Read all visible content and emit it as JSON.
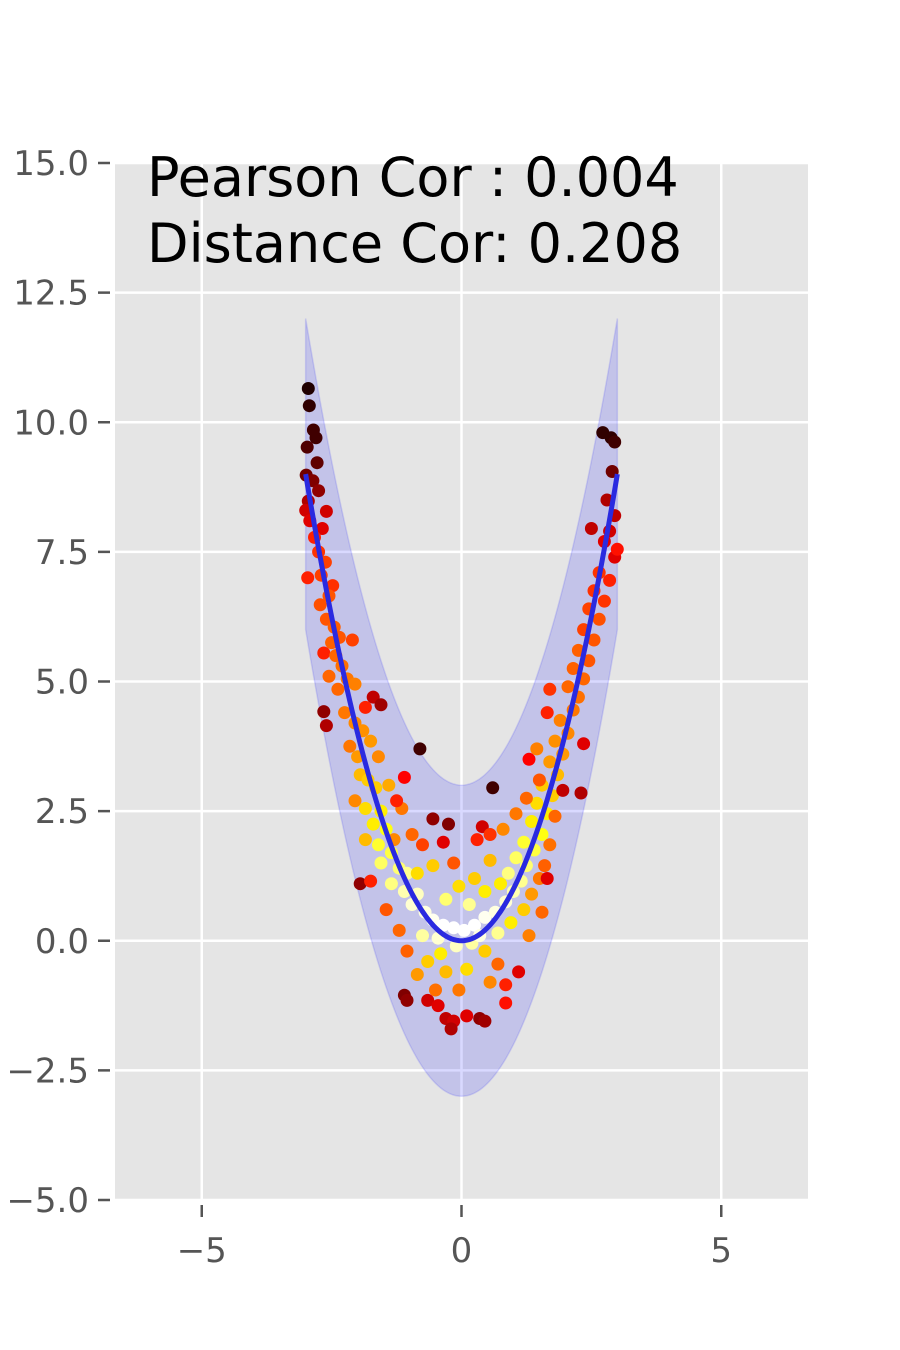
{
  "chart_data": {
    "type": "scatter",
    "title": "",
    "xlabel": "",
    "ylabel": "",
    "xlim": [
      -6.67,
      6.67
    ],
    "ylim": [
      -5,
      15
    ],
    "xticks": [
      -5,
      0,
      5
    ],
    "xtick_labels": [
      "−5",
      "0",
      "5"
    ],
    "yticks": [
      -5,
      -2.5,
      0,
      2.5,
      5,
      7.5,
      10,
      12.5,
      15
    ],
    "ytick_labels": [
      "−5.0",
      "−2.5",
      "0.0",
      "2.5",
      "5.0",
      "7.5",
      "10.0",
      "12.5",
      "15.0"
    ],
    "grid": true,
    "annotation_lines": [
      "Pearson Cor : 0.004",
      "Distance Cor: 0.208"
    ],
    "band": {
      "curve": "y = x^2",
      "x_range": [
        -3,
        3
      ],
      "upper_offset": 3,
      "lower_offset": -3,
      "color": "#0000ff",
      "opacity": 0.15
    },
    "fit_line": {
      "curve": "y = x^2",
      "x_range": [
        -3,
        3
      ],
      "color": "#2a2ae0"
    },
    "points_color_scale": "hot (density)",
    "points": [
      [
        -2.95,
        10.65,
        "#200000"
      ],
      [
        -2.93,
        10.32,
        "#300000"
      ],
      [
        -2.85,
        9.85,
        "#400000"
      ],
      [
        -2.8,
        9.7,
        "#400000"
      ],
      [
        -2.97,
        9.52,
        "#500000"
      ],
      [
        -2.78,
        9.22,
        "#600000"
      ],
      [
        -2.99,
        8.98,
        "#700000"
      ],
      [
        -2.86,
        8.87,
        "#800000"
      ],
      [
        -2.75,
        8.68,
        "#900000"
      ],
      [
        -2.95,
        8.48,
        "#b00000"
      ],
      [
        -3.0,
        8.3,
        "#d00000"
      ],
      [
        -2.92,
        8.1,
        "#e00000"
      ],
      [
        -2.6,
        8.28,
        "#d00000"
      ],
      [
        -2.68,
        7.95,
        "#e00000"
      ],
      [
        -2.83,
        7.78,
        "#ff2000"
      ],
      [
        -2.75,
        7.5,
        "#ff3300"
      ],
      [
        -2.62,
        7.3,
        "#ff4000"
      ],
      [
        -2.96,
        7.0,
        "#ff2000"
      ],
      [
        -2.7,
        7.05,
        "#ff4000"
      ],
      [
        -2.48,
        6.85,
        "#ff3000"
      ],
      [
        -2.55,
        6.65,
        "#ff5500"
      ],
      [
        -2.72,
        6.48,
        "#ff5000"
      ],
      [
        -2.6,
        6.2,
        "#ff5500"
      ],
      [
        -2.45,
        6.05,
        "#ff6000"
      ],
      [
        -2.35,
        5.85,
        "#ff5500"
      ],
      [
        -2.5,
        5.75,
        "#ff6000"
      ],
      [
        -2.1,
        5.8,
        "#ff4000"
      ],
      [
        -2.65,
        5.55,
        "#ff2000"
      ],
      [
        -2.42,
        5.5,
        "#ff6600"
      ],
      [
        -2.3,
        5.3,
        "#ff7000"
      ],
      [
        -2.55,
        5.1,
        "#ff6600"
      ],
      [
        -2.2,
        5.05,
        "#ff7700"
      ],
      [
        -2.38,
        4.85,
        "#ff6600"
      ],
      [
        -2.05,
        4.95,
        "#ff8000"
      ],
      [
        -1.7,
        4.7,
        "#c00000"
      ],
      [
        -1.55,
        4.55,
        "#a00000"
      ],
      [
        -1.85,
        4.5,
        "#ff2000"
      ],
      [
        -2.25,
        4.4,
        "#ff7700"
      ],
      [
        -2.65,
        4.42,
        "#900000"
      ],
      [
        -2.6,
        4.15,
        "#b00000"
      ],
      [
        -2.05,
        4.2,
        "#ff8800"
      ],
      [
        -1.9,
        4.05,
        "#ff9000"
      ],
      [
        -2.15,
        3.75,
        "#ff7700"
      ],
      [
        -1.75,
        3.85,
        "#ff9900"
      ],
      [
        -2.0,
        3.55,
        "#ff9900"
      ],
      [
        -1.95,
        3.2,
        "#ffbb00"
      ],
      [
        -1.8,
        3.1,
        "#ffcc00"
      ],
      [
        -1.65,
        2.95,
        "#ffcc00"
      ],
      [
        -2.05,
        2.7,
        "#ff8800"
      ],
      [
        -1.85,
        2.55,
        "#ffdd00"
      ],
      [
        -1.55,
        2.5,
        "#ffee00"
      ],
      [
        -1.7,
        2.25,
        "#ffee00"
      ],
      [
        -1.45,
        2.15,
        "#ffff10"
      ],
      [
        -1.85,
        1.95,
        "#ffbb00"
      ],
      [
        -1.6,
        1.85,
        "#ffff30"
      ],
      [
        -1.35,
        1.7,
        "#ffff40"
      ],
      [
        -1.55,
        1.5,
        "#ffff60"
      ],
      [
        -1.2,
        1.4,
        "#ffff70"
      ],
      [
        -1.05,
        1.3,
        "#ffff90"
      ],
      [
        -1.35,
        1.1,
        "#ffff80"
      ],
      [
        -1.1,
        0.95,
        "#ffffb0"
      ],
      [
        -0.85,
        0.9,
        "#ffffc0"
      ],
      [
        -0.95,
        0.7,
        "#ffffd0"
      ],
      [
        -0.7,
        0.55,
        "#ffffe0"
      ],
      [
        -0.55,
        0.4,
        "#fffff0"
      ],
      [
        -0.35,
        0.3,
        "#ffffff"
      ],
      [
        -0.15,
        0.25,
        "#ffffff"
      ],
      [
        0.05,
        0.2,
        "#ffffff"
      ],
      [
        0.25,
        0.3,
        "#ffffff"
      ],
      [
        0.45,
        0.45,
        "#fffff0"
      ],
      [
        0.65,
        0.55,
        "#ffffe0"
      ],
      [
        0.85,
        0.75,
        "#ffffd0"
      ],
      [
        1.0,
        0.95,
        "#ffffb0"
      ],
      [
        1.15,
        1.15,
        "#ffff90"
      ],
      [
        0.9,
        1.3,
        "#ffff80"
      ],
      [
        1.25,
        1.45,
        "#ffff70"
      ],
      [
        1.05,
        1.6,
        "#ffff60"
      ],
      [
        1.4,
        1.75,
        "#ffff40"
      ],
      [
        1.2,
        1.9,
        "#ffff30"
      ],
      [
        1.55,
        2.05,
        "#ffff10"
      ],
      [
        1.35,
        2.3,
        "#ffee00"
      ],
      [
        1.65,
        2.45,
        "#ffee00"
      ],
      [
        1.45,
        2.65,
        "#ffdd00"
      ],
      [
        1.75,
        2.8,
        "#ffcc00"
      ],
      [
        1.55,
        3.0,
        "#ffcc00"
      ],
      [
        1.85,
        3.2,
        "#ffbb00"
      ],
      [
        1.7,
        3.45,
        "#ff9900"
      ],
      [
        1.95,
        3.6,
        "#ff9900"
      ],
      [
        1.8,
        3.85,
        "#ff9000"
      ],
      [
        2.05,
        4.0,
        "#ff8800"
      ],
      [
        1.9,
        4.25,
        "#ff8000"
      ],
      [
        2.15,
        4.45,
        "#ff7700"
      ],
      [
        1.65,
        4.4,
        "#ff2000"
      ],
      [
        2.25,
        4.7,
        "#ff7000"
      ],
      [
        2.05,
        4.9,
        "#ff6600"
      ],
      [
        1.7,
        4.85,
        "#ff3300"
      ],
      [
        2.35,
        5.05,
        "#ff6600"
      ],
      [
        2.15,
        5.25,
        "#ff6000"
      ],
      [
        2.45,
        5.4,
        "#ff5500"
      ],
      [
        2.25,
        5.6,
        "#ff6000"
      ],
      [
        2.55,
        5.8,
        "#ff5500"
      ],
      [
        2.35,
        6.0,
        "#ff4000"
      ],
      [
        2.65,
        6.2,
        "#ff5000"
      ],
      [
        2.45,
        6.4,
        "#ff4000"
      ],
      [
        2.75,
        6.55,
        "#ff3300"
      ],
      [
        2.55,
        6.75,
        "#ff3000"
      ],
      [
        2.85,
        6.95,
        "#ff2000"
      ],
      [
        2.65,
        7.1,
        "#ff3300"
      ],
      [
        2.95,
        7.4,
        "#e00000"
      ],
      [
        2.75,
        7.7,
        "#e00000"
      ],
      [
        3.0,
        7.55,
        "#ff1000"
      ],
      [
        2.85,
        7.9,
        "#d00000"
      ],
      [
        2.5,
        7.95,
        "#c00000"
      ],
      [
        2.95,
        8.2,
        "#c00000"
      ],
      [
        2.8,
        8.5,
        "#b00000"
      ],
      [
        2.9,
        9.05,
        "#700000"
      ],
      [
        2.72,
        9.8,
        "#300000"
      ],
      [
        2.88,
        9.7,
        "#300000"
      ],
      [
        2.95,
        9.62,
        "#400000"
      ],
      [
        2.35,
        3.8,
        "#e00000"
      ],
      [
        2.3,
        2.85,
        "#b00000"
      ],
      [
        1.95,
        2.9,
        "#c00000"
      ],
      [
        0.6,
        2.95,
        "#400000"
      ],
      [
        0.4,
        2.2,
        "#d00000"
      ],
      [
        0.55,
        2.05,
        "#ff3300"
      ],
      [
        0.3,
        1.95,
        "#ff2000"
      ],
      [
        -0.25,
        2.25,
        "#800000"
      ],
      [
        -0.55,
        2.35,
        "#900000"
      ],
      [
        -0.8,
        3.7,
        "#400000"
      ],
      [
        -1.1,
        3.15,
        "#ff0000"
      ],
      [
        -1.95,
        1.1,
        "#900000"
      ],
      [
        -1.75,
        1.15,
        "#ff2000"
      ],
      [
        -1.45,
        0.6,
        "#ff5500"
      ],
      [
        -1.2,
        0.2,
        "#ff6600"
      ],
      [
        -1.05,
        -0.2,
        "#ff6000"
      ],
      [
        -1.1,
        -1.05,
        "#800000"
      ],
      [
        -1.05,
        -1.15,
        "#900000"
      ],
      [
        -0.65,
        -1.15,
        "#d00000"
      ],
      [
        -0.45,
        -1.25,
        "#e00000"
      ],
      [
        -0.3,
        -1.5,
        "#c00000"
      ],
      [
        -0.15,
        -1.55,
        "#d00000"
      ],
      [
        -0.2,
        -1.7,
        "#b00000"
      ],
      [
        0.1,
        -1.45,
        "#e00000"
      ],
      [
        0.35,
        -1.5,
        "#900000"
      ],
      [
        0.45,
        -1.55,
        "#a00000"
      ],
      [
        0.85,
        -0.85,
        "#ff2000"
      ],
      [
        0.85,
        -1.2,
        "#ff1000"
      ],
      [
        1.1,
        -0.6,
        "#e00000"
      ],
      [
        0.7,
        -0.45,
        "#ff6600"
      ],
      [
        0.45,
        -0.2,
        "#ffcc00"
      ],
      [
        0.2,
        -0.05,
        "#ffffa0"
      ],
      [
        -0.1,
        -0.1,
        "#ffffc0"
      ],
      [
        -0.4,
        -0.25,
        "#ffee00"
      ],
      [
        -0.65,
        -0.4,
        "#ffcc00"
      ],
      [
        -0.85,
        -0.65,
        "#ff9900"
      ],
      [
        -0.3,
        -0.6,
        "#ffbb00"
      ],
      [
        0.1,
        -0.55,
        "#ffdd00"
      ],
      [
        0.55,
        -0.8,
        "#ff8800"
      ],
      [
        -0.05,
        -0.95,
        "#ff7700"
      ],
      [
        -0.5,
        -0.95,
        "#ff7000"
      ],
      [
        -0.75,
        0.1,
        "#ffffa0"
      ],
      [
        -0.45,
        0.05,
        "#ffffd0"
      ],
      [
        0.35,
        0.1,
        "#ffffe0"
      ],
      [
        0.7,
        0.15,
        "#ffff90"
      ],
      [
        0.95,
        0.35,
        "#ffee00"
      ],
      [
        1.2,
        0.6,
        "#ffcc00"
      ],
      [
        1.35,
        0.9,
        "#ff9900"
      ],
      [
        1.5,
        1.2,
        "#ff7700"
      ],
      [
        1.6,
        1.45,
        "#ff6000"
      ],
      [
        1.55,
        0.55,
        "#ff6600"
      ],
      [
        1.3,
        0.1,
        "#ff8000"
      ],
      [
        -1.3,
        1.95,
        "#ff8800"
      ],
      [
        -1.15,
        2.55,
        "#ff7700"
      ],
      [
        -0.95,
        2.05,
        "#ff6600"
      ],
      [
        -0.75,
        1.85,
        "#ff4000"
      ],
      [
        -0.35,
        1.9,
        "#e00000"
      ],
      [
        -0.15,
        1.5,
        "#ff5500"
      ],
      [
        -1.25,
        2.7,
        "#ff2000"
      ],
      [
        1.05,
        2.45,
        "#ff7700"
      ],
      [
        0.8,
        2.15,
        "#ff8800"
      ],
      [
        1.25,
        2.75,
        "#ff6600"
      ],
      [
        1.5,
        3.1,
        "#ff5500"
      ],
      [
        1.8,
        2.4,
        "#ff6600"
      ],
      [
        1.7,
        1.85,
        "#ff7000"
      ],
      [
        1.65,
        1.2,
        "#e00000"
      ],
      [
        1.45,
        3.7,
        "#ff8000"
      ],
      [
        1.3,
        3.5,
        "#ff0000"
      ],
      [
        -1.6,
        3.55,
        "#ff8800"
      ],
      [
        -1.4,
        3.0,
        "#ffaa00"
      ],
      [
        -0.55,
        1.45,
        "#ffcc00"
      ],
      [
        0.55,
        1.55,
        "#ffbb00"
      ],
      [
        -0.05,
        1.05,
        "#ffdd00"
      ],
      [
        0.25,
        1.2,
        "#ffcc00"
      ],
      [
        -0.3,
        0.8,
        "#ffff70"
      ],
      [
        0.15,
        0.7,
        "#ffff90"
      ],
      [
        0.45,
        0.95,
        "#ffee00"
      ],
      [
        -0.85,
        1.3,
        "#ffdd00"
      ],
      [
        0.75,
        1.1,
        "#ffee00"
      ]
    ]
  }
}
